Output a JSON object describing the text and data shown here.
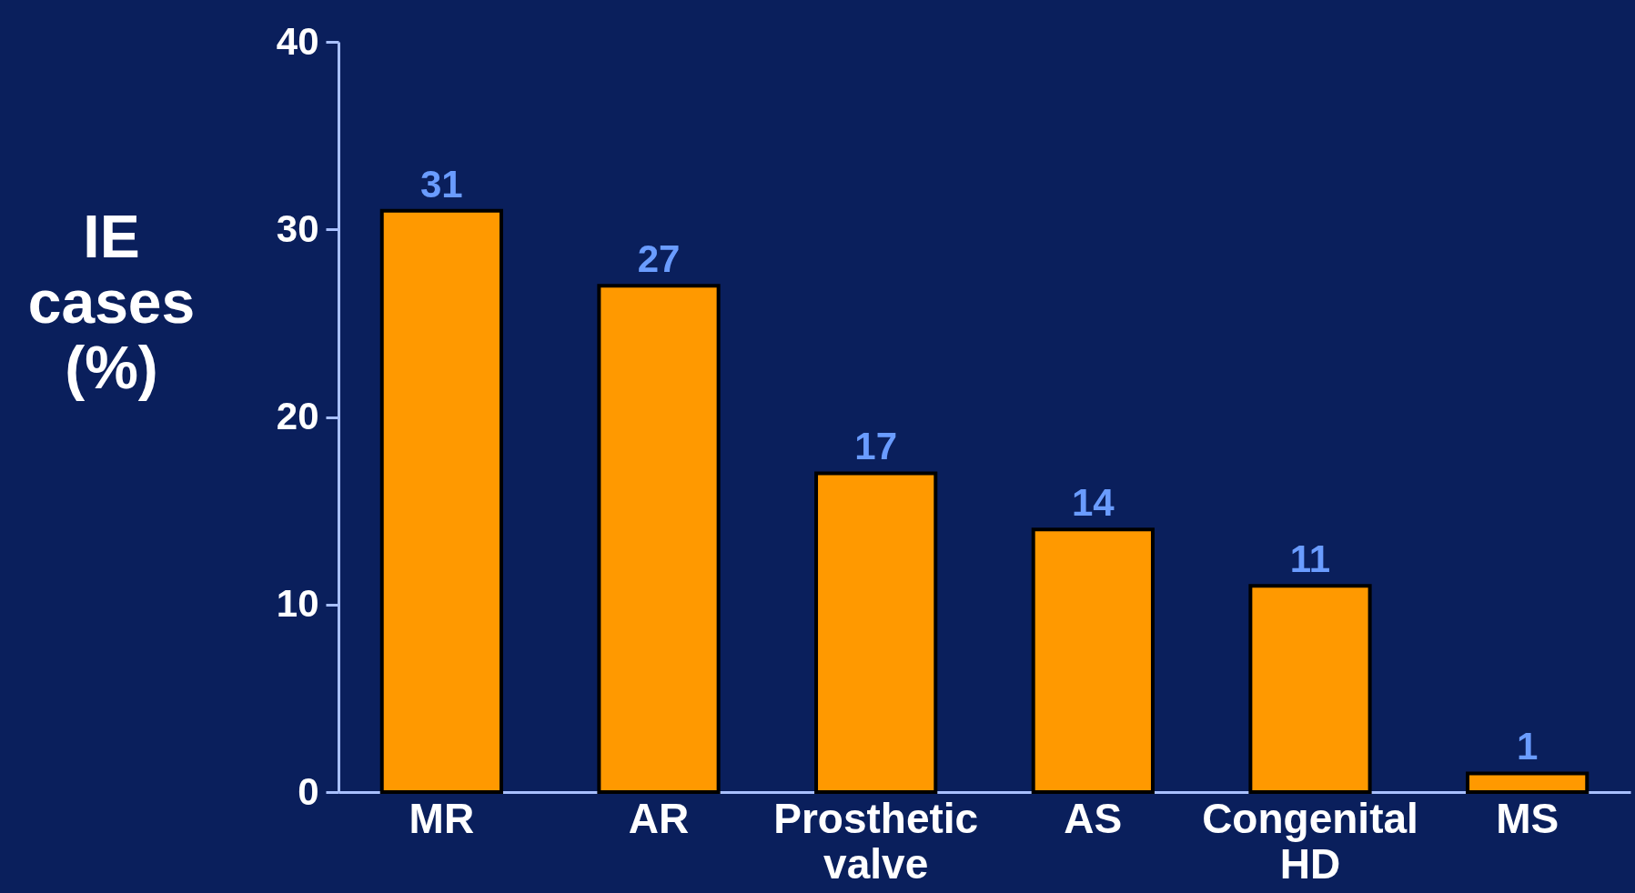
{
  "chart_data": {
    "type": "bar",
    "ylabel": "IE cases (%)",
    "categories": [
      "MR",
      "AR",
      "Prosthetic valve",
      "AS",
      "Congenital HD",
      "MS"
    ],
    "values": [
      31,
      27,
      17,
      14,
      11,
      1
    ],
    "color": "#ff9900",
    "ylim": [
      0,
      40
    ],
    "yticks": [
      0,
      10,
      20,
      30,
      40
    ],
    "grid": false,
    "data_labels": true
  }
}
